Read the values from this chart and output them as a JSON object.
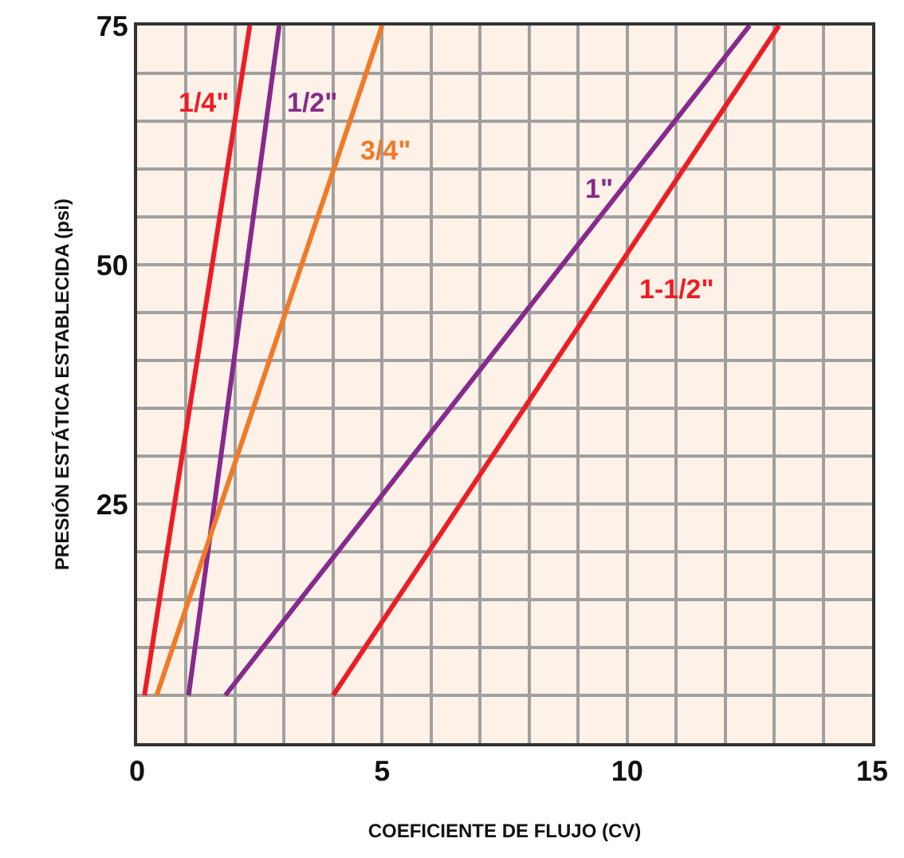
{
  "chart_data": {
    "type": "line",
    "xlabel": "COEFICIENTE DE FLUJO (CV)",
    "ylabel": "PRESIÓN ESTÁTICA ESTABLECIDA (psi)",
    "series": [
      {
        "name": "1/4\"",
        "color": "#ee1c25",
        "x": [
          0.15,
          2.3
        ],
        "values": [
          5,
          75
        ]
      },
      {
        "name": "1/2\"",
        "color": "#862a8c",
        "x": [
          1.05,
          2.9
        ],
        "values": [
          5,
          75
        ]
      },
      {
        "name": "3/4\"",
        "color": "#f07a28",
        "x": [
          0.4,
          5.0
        ],
        "values": [
          5,
          75
        ]
      },
      {
        "name": "1\"",
        "color": "#862a8c",
        "x": [
          1.8,
          12.5
        ],
        "values": [
          5,
          75
        ]
      },
      {
        "name": "1-1/2\"",
        "color": "#ee1c25",
        "x": [
          4.0,
          13.1
        ],
        "values": [
          5,
          75
        ]
      }
    ],
    "xlim": [
      0,
      15
    ],
    "xticks": [
      0,
      {
        "value": 1,
        "label": null
      },
      {
        "value": 2,
        "label": null
      },
      {
        "value": 3,
        "label": null
      },
      {
        "value": 4,
        "label": null
      },
      5,
      {
        "value": 6,
        "label": null
      },
      {
        "value": 7,
        "label": null
      },
      {
        "value": 8,
        "label": null
      },
      {
        "value": 9,
        "label": null
      },
      10,
      {
        "value": 11,
        "label": null
      },
      {
        "value": 12,
        "label": null
      },
      {
        "value": 13,
        "label": null
      },
      {
        "value": 14,
        "label": null
      },
      15
    ],
    "ylim": [
      0,
      75
    ],
    "yticks": [
      {
        "value": 5,
        "label": null
      },
      {
        "value": 10,
        "label": null
      },
      {
        "value": 15,
        "label": null
      },
      {
        "value": 20,
        "label": null
      },
      25,
      {
        "value": 30,
        "label": null
      },
      {
        "value": 35,
        "label": null
      },
      {
        "value": 40,
        "label": null
      },
      {
        "value": 45,
        "label": null
      },
      50,
      {
        "value": 55,
        "label": null
      },
      {
        "value": 60,
        "label": null
      },
      {
        "value": 65,
        "label": null
      },
      {
        "value": 70,
        "label": null
      },
      75
    ],
    "grid": true,
    "legend": false,
    "marker": "none",
    "line_style": "solid"
  }
}
